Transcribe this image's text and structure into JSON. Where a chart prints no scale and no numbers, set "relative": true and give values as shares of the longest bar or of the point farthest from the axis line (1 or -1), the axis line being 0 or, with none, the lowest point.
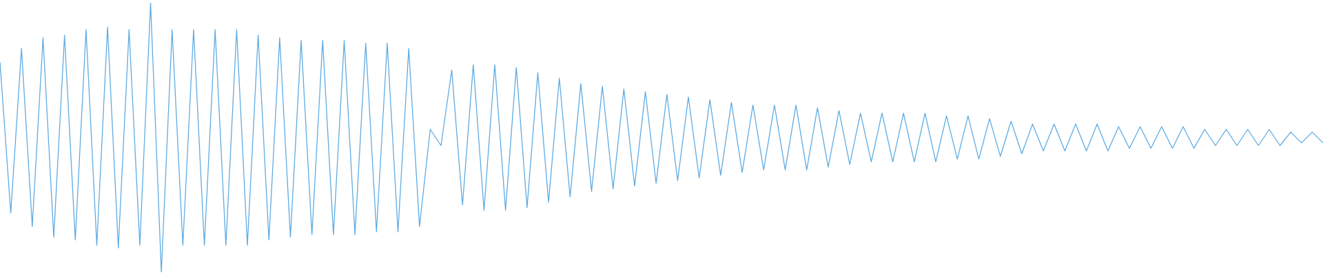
{
  "chart_data": {
    "type": "line",
    "relative": true,
    "marker": "none",
    "color": "#5eabe3",
    "categories": [
      null,
      null,
      null,
      null,
      null,
      null,
      null,
      null,
      null,
      null,
      null,
      null,
      null,
      null,
      null,
      null,
      null,
      null,
      null,
      null,
      null,
      null,
      null,
      null,
      null,
      null,
      null,
      null,
      null,
      null,
      null,
      null,
      null,
      null,
      null,
      null,
      null,
      null,
      null,
      null,
      null,
      null,
      null,
      null,
      null,
      null,
      null,
      null,
      null,
      null,
      null,
      null,
      null,
      null,
      null,
      null,
      null,
      null,
      null,
      null,
      null,
      null,
      null,
      null,
      null,
      null,
      null,
      null,
      null,
      null,
      null,
      null,
      null,
      null,
      null,
      null,
      null,
      null,
      null,
      null,
      null,
      null,
      null,
      null,
      null,
      null,
      null,
      null,
      null,
      null,
      null,
      null,
      null,
      null,
      null,
      null,
      null,
      null,
      null,
      null,
      null,
      null,
      null,
      null,
      null,
      null,
      null,
      null,
      null,
      null,
      null,
      null,
      null,
      null,
      null,
      null,
      null,
      null,
      null,
      null,
      null,
      null,
      null,
      null
    ],
    "values": [
      0.78,
      0.22,
      0.83,
      0.17,
      0.87,
      0.13,
      0.88,
      0.12,
      0.9,
      0.1,
      0.91,
      0.09,
      0.9,
      0.1,
      1,
      0,
      0.9,
      0.1,
      0.9,
      0.1,
      0.9,
      0.1,
      0.9,
      0.1,
      0.88,
      0.12,
      0.87,
      0.13,
      0.86,
      0.14,
      0.86,
      0.14,
      0.86,
      0.14,
      0.85,
      0.15,
      0.85,
      0.15,
      0.83,
      0.17,
      0.53,
      0.47,
      0.75,
      0.25,
      0.77,
      0.23,
      0.77,
      0.23,
      0.76,
      0.24,
      0.74,
      0.26,
      0.72,
      0.28,
      0.7,
      0.3,
      0.69,
      0.31,
      0.68,
      0.32,
      0.67,
      0.33,
      0.66,
      0.34,
      0.65,
      0.35,
      0.64,
      0.36,
      0.63,
      0.37,
      0.62,
      0.38,
      0.62,
      0.38,
      0.62,
      0.38,
      0.61,
      0.39,
      0.6,
      0.4,
      0.59,
      0.41,
      0.59,
      0.41,
      0.59,
      0.41,
      0.59,
      0.41,
      0.58,
      0.42,
      0.58,
      0.42,
      0.57,
      0.43,
      0.56,
      0.44,
      0.55,
      0.45,
      0.55,
      0.45,
      0.55,
      0.45,
      0.55,
      0.45,
      0.54,
      0.46,
      0.54,
      0.46,
      0.54,
      0.46,
      0.54,
      0.46,
      0.53,
      0.47,
      0.53,
      0.47,
      0.53,
      0.47,
      0.53,
      0.47,
      0.52,
      0.48,
      0.52,
      0.48
    ]
  }
}
